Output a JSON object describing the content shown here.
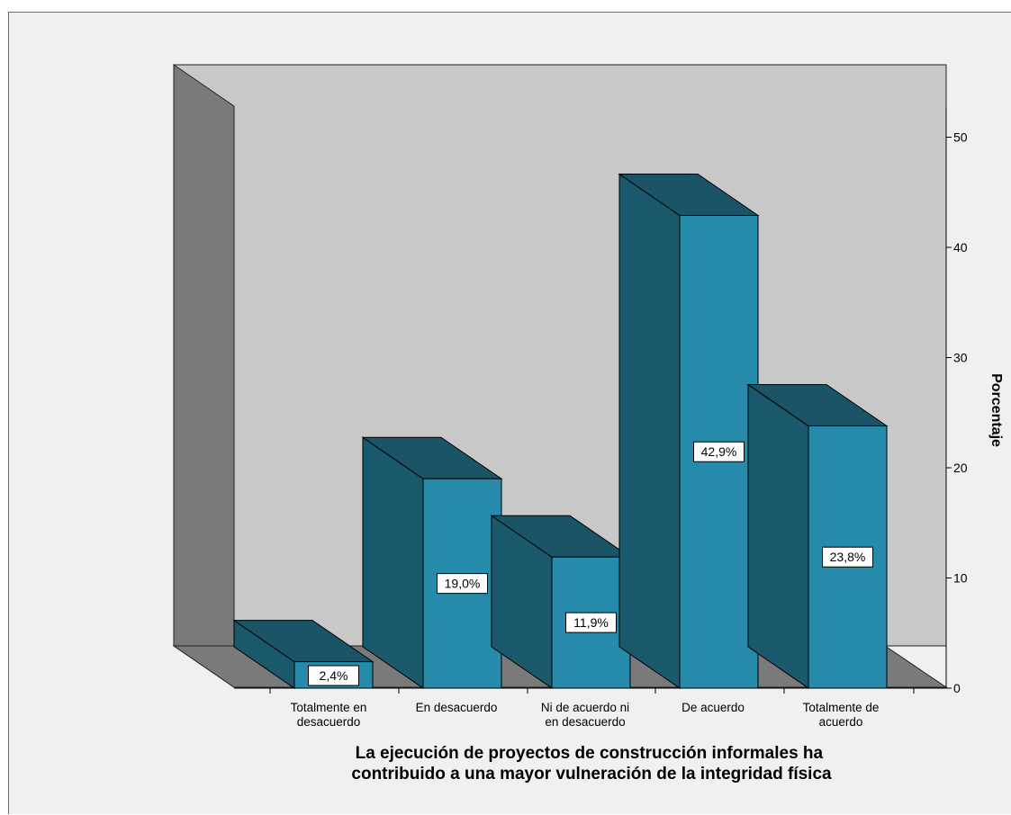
{
  "chart_data": {
    "type": "bar",
    "title": "",
    "xlabel_lines": [
      "La ejecución de proyectos de construcción informales ha",
      "contribuido a una mayor vulneración de la integridad física"
    ],
    "ylabel": "Porcentaje",
    "ylim": [
      0,
      50
    ],
    "yticks": [
      0,
      10,
      20,
      30,
      40,
      50
    ],
    "categories": [
      [
        "Totalmente en",
        "desacuerdo"
      ],
      [
        "En desacuerdo"
      ],
      [
        "Ni de acuerdo ni",
        "en desacuerdo"
      ],
      [
        "De acuerdo"
      ],
      [
        "Totalmente de",
        "acuerdo"
      ]
    ],
    "values": [
      2.4,
      19.0,
      11.9,
      42.9,
      23.8
    ],
    "data_labels": [
      "2,4%",
      "19,0%",
      "11,9%",
      "42,9%",
      "23,8%"
    ],
    "grid": false,
    "three_d": true,
    "colors": {
      "bar_front": "#268baa",
      "bar_side": "#1a586c",
      "bar_top": "#1c5467",
      "back_wall": "#c8c8c8",
      "side_wall": "#7a7a7a",
      "floor": "#7a7a7a",
      "background": "#f0f0f0"
    }
  }
}
